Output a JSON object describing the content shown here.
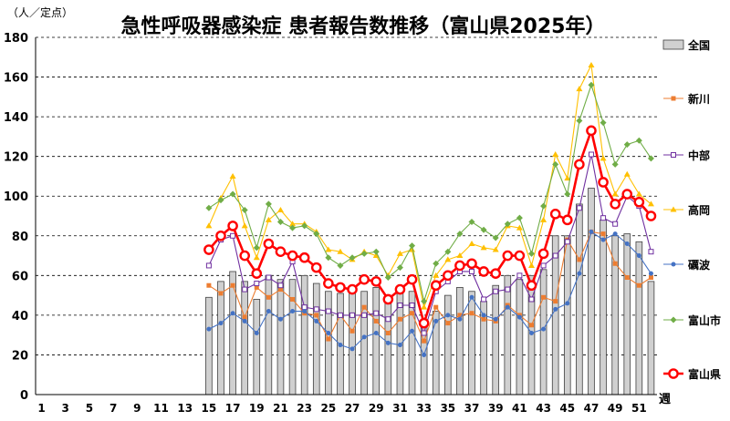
{
  "chart_data": {
    "type": "bar+line",
    "title": "急性呼吸器感染症 患者報告数推移（富山県2025年）",
    "ylabel": "（人／定点）",
    "xunit": "週",
    "ylim": [
      0,
      180
    ],
    "yticks": [
      0,
      20,
      40,
      60,
      80,
      100,
      120,
      140,
      160,
      180
    ],
    "xlim": [
      1,
      52
    ],
    "xticks": [
      1,
      3,
      5,
      7,
      9,
      11,
      13,
      15,
      17,
      19,
      21,
      23,
      25,
      27,
      29,
      31,
      33,
      35,
      37,
      39,
      41,
      43,
      45,
      47,
      49,
      51
    ],
    "grid": "horizontal dashed",
    "legend_position": "right",
    "weeks": [
      15,
      16,
      17,
      18,
      19,
      20,
      21,
      22,
      23,
      24,
      25,
      26,
      27,
      28,
      29,
      30,
      31,
      32,
      33,
      34,
      35,
      36,
      37,
      38,
      39,
      40,
      41,
      42,
      43,
      44,
      45,
      46,
      47,
      48,
      49,
      50,
      51,
      52
    ],
    "bar_series": {
      "name": "全国",
      "color": "#d0d0d0",
      "values": [
        49,
        57,
        62,
        57,
        48,
        60,
        58,
        58,
        60,
        56,
        52,
        51,
        51,
        52,
        54,
        49,
        51,
        52,
        36,
        42,
        50,
        54,
        52,
        47,
        55,
        60,
        58,
        60,
        63,
        80,
        80,
        96,
        104,
        88,
        80,
        81,
        77,
        57
      ]
    },
    "series": [
      {
        "name": "新川",
        "color": "#ed7d31",
        "marker": "square-filled",
        "values": [
          55,
          51,
          55,
          39,
          54,
          49,
          53,
          48,
          41,
          40,
          28,
          40,
          32,
          44,
          37,
          31,
          38,
          41,
          27,
          44,
          36,
          40,
          41,
          38,
          37,
          45,
          40,
          35,
          49,
          47,
          78,
          68,
          82,
          81,
          66,
          59,
          55,
          59
        ]
      },
      {
        "name": "中部",
        "color": "#7030a0",
        "marker": "square-open",
        "values": [
          65,
          78,
          80,
          53,
          56,
          59,
          55,
          67,
          44,
          43,
          42,
          40,
          40,
          40,
          41,
          38,
          45,
          45,
          31,
          52,
          57,
          62,
          62,
          48,
          52,
          53,
          60,
          48,
          65,
          70,
          77,
          94,
          121,
          89,
          86,
          100,
          95,
          72
        ]
      },
      {
        "name": "高岡",
        "color": "#ffc000",
        "marker": "triangle",
        "values": [
          85,
          99,
          110,
          85,
          69,
          88,
          93,
          86,
          86,
          82,
          73,
          72,
          68,
          72,
          70,
          60,
          71,
          73,
          44,
          60,
          68,
          70,
          76,
          74,
          73,
          85,
          84,
          65,
          88,
          121,
          109,
          154,
          166,
          119,
          101,
          111,
          101,
          96
        ]
      },
      {
        "name": "礪波",
        "color": "#4472c4",
        "marker": "circle-small",
        "values": [
          33,
          36,
          41,
          37,
          31,
          42,
          38,
          42,
          42,
          37,
          31,
          25,
          23,
          29,
          31,
          26,
          25,
          32,
          20,
          37,
          40,
          38,
          49,
          40,
          38,
          44,
          39,
          31,
          33,
          43,
          46,
          61,
          82,
          78,
          81,
          76,
          70,
          61
        ]
      },
      {
        "name": "富山市",
        "color": "#70ad47",
        "marker": "diamond",
        "values": [
          94,
          98,
          101,
          93,
          74,
          96,
          87,
          84,
          85,
          81,
          69,
          65,
          69,
          71,
          72,
          59,
          64,
          75,
          47,
          66,
          72,
          81,
          87,
          83,
          79,
          86,
          89,
          71,
          95,
          116,
          101,
          138,
          156,
          137,
          116,
          126,
          128,
          119
        ]
      },
      {
        "name": "富山県",
        "color": "#ff0000",
        "marker": "circle-open-large",
        "values": [
          73,
          80,
          85,
          70,
          61,
          76,
          72,
          70,
          69,
          64,
          56,
          54,
          53,
          58,
          57,
          48,
          53,
          58,
          36,
          55,
          60,
          65,
          66,
          62,
          61,
          70,
          70,
          55,
          71,
          91,
          88,
          116,
          133,
          107,
          96,
          101,
          97,
          90
        ]
      }
    ]
  }
}
